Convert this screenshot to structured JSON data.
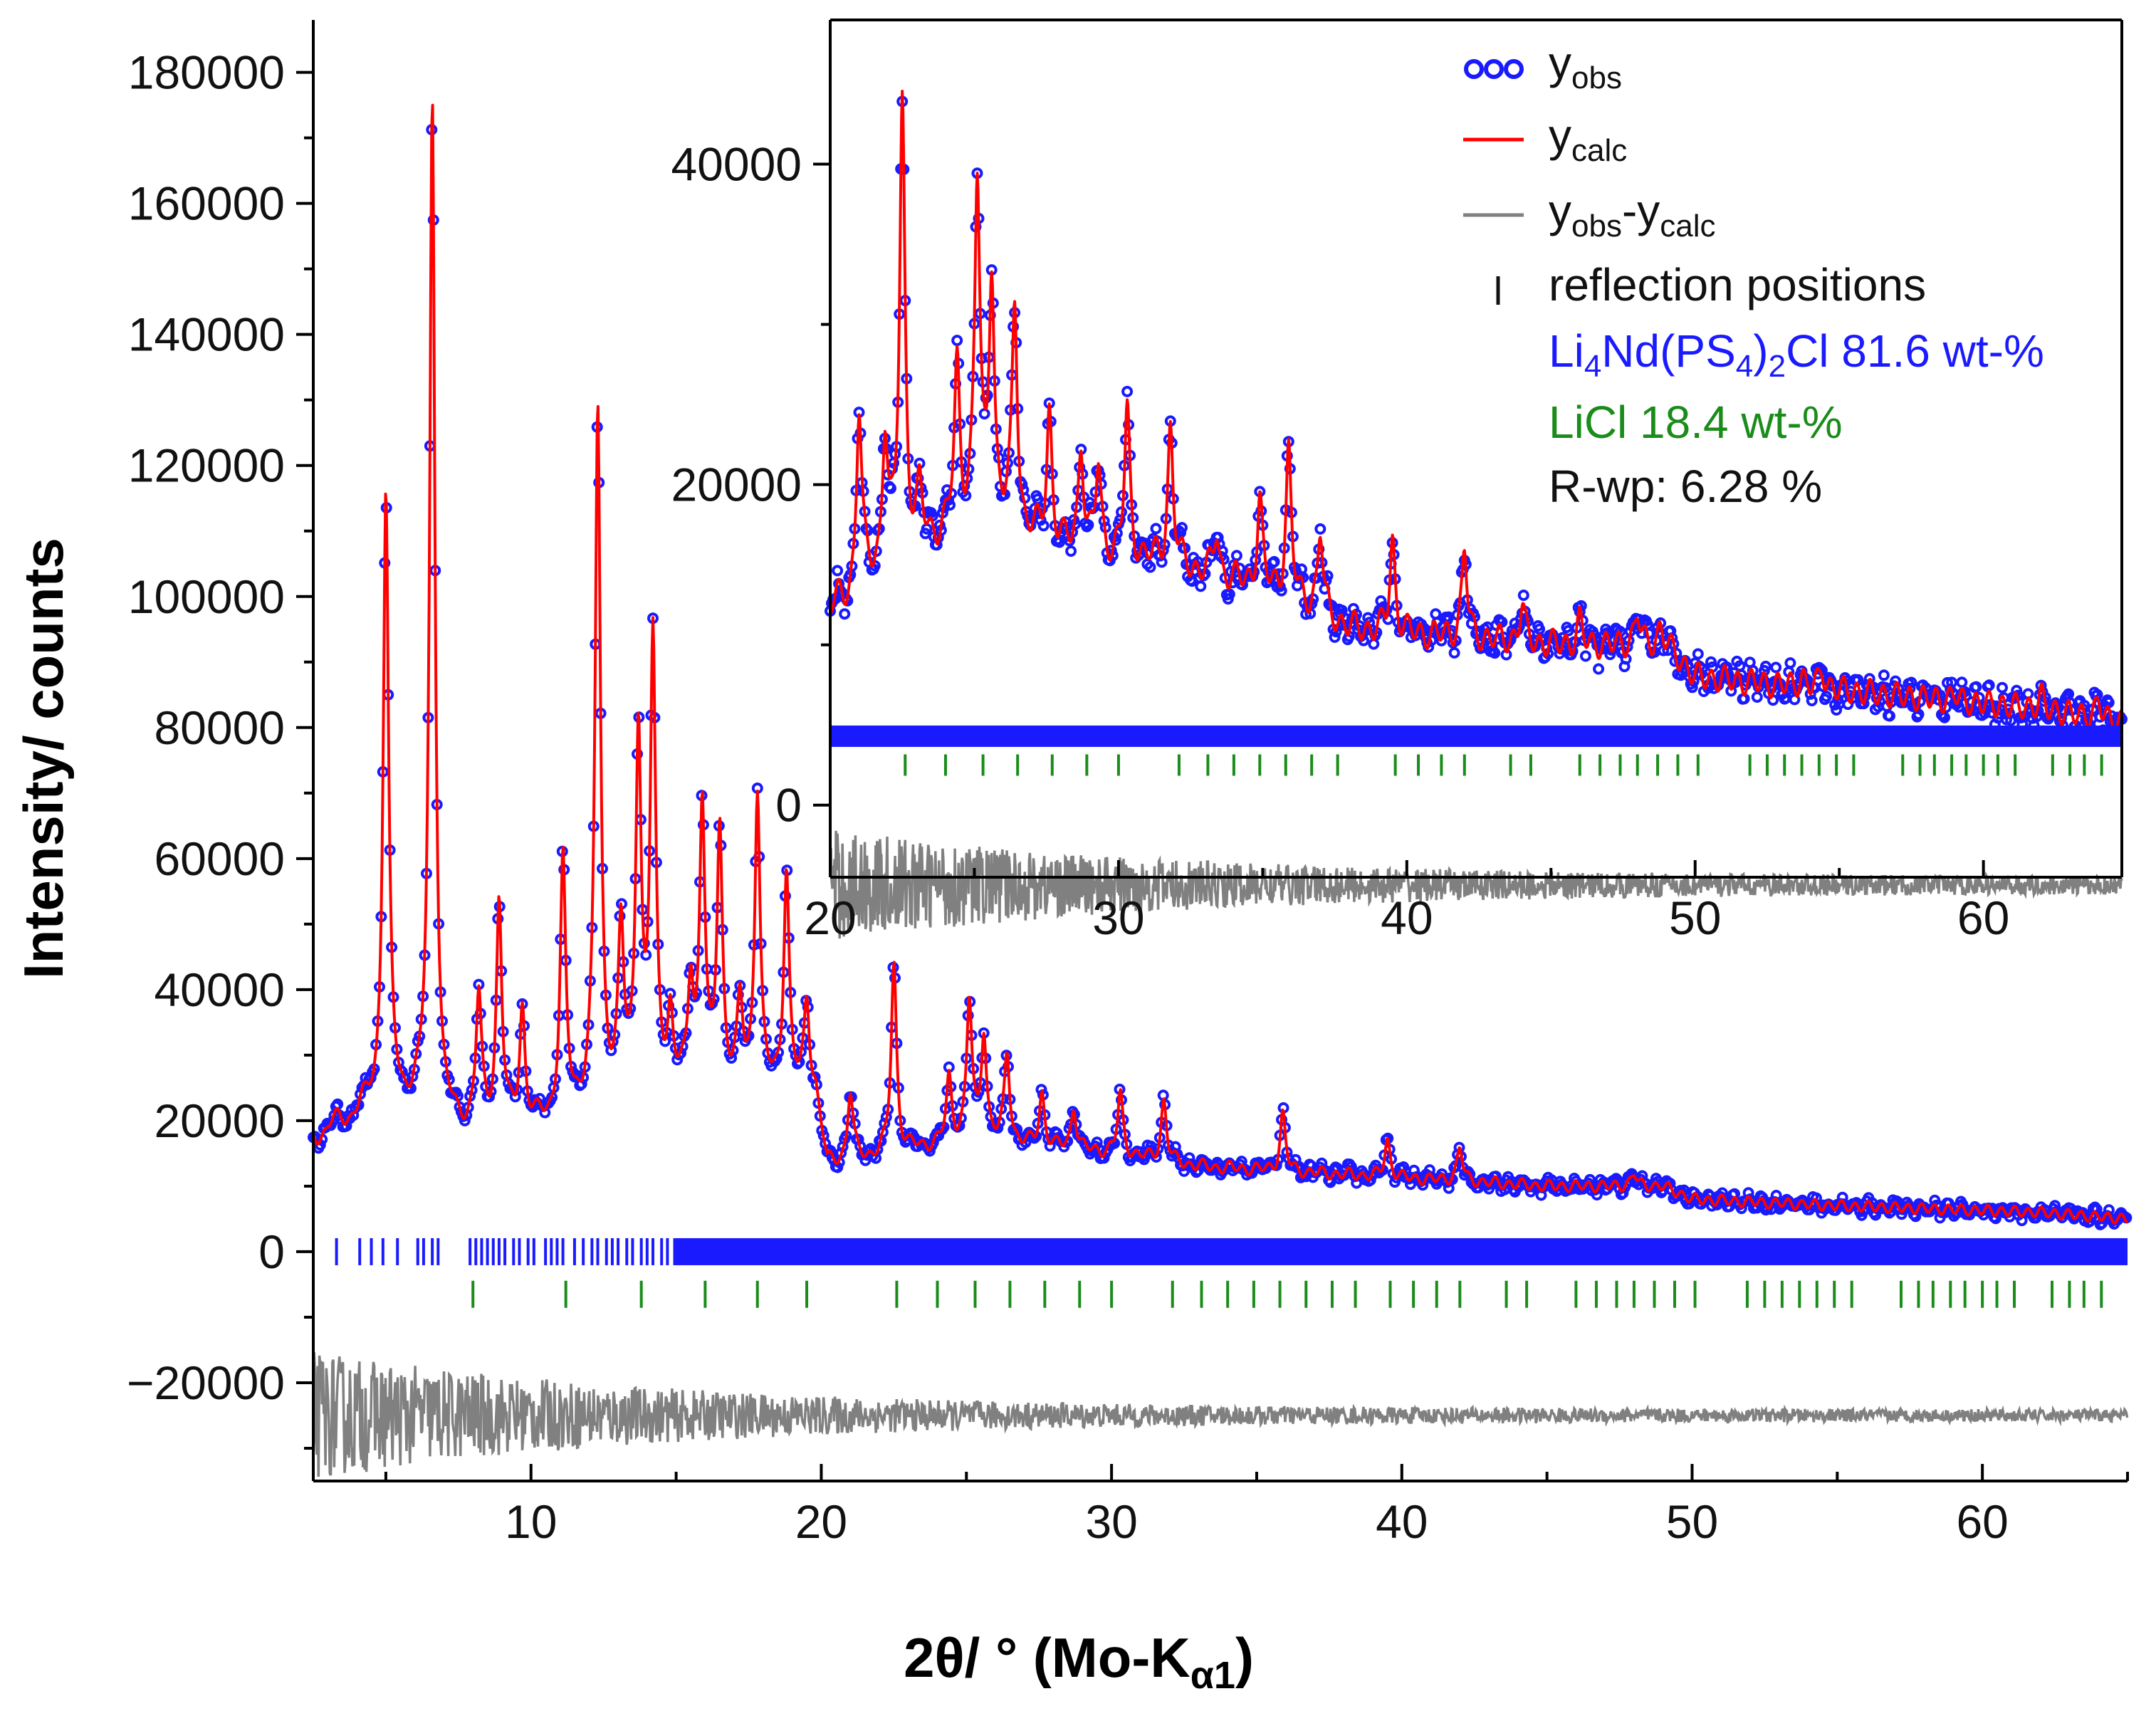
{
  "chart_data": [
    {
      "panel": "main",
      "type": "line",
      "xlabel": "2θ/ ° (Mo-K",
      "xlabel_sub": "α1",
      "xlabel_close": ")",
      "ylabel": "Intensity/ counts",
      "xlim": [
        2.5,
        65
      ],
      "ylim": [
        -35000,
        188000
      ],
      "x_ticks": [
        10,
        20,
        30,
        40,
        50,
        60
      ],
      "x_tick_labels": [
        "10",
        "20",
        "30",
        "40",
        "50",
        "60"
      ],
      "y_ticks": [
        -20000,
        0,
        20000,
        40000,
        60000,
        80000,
        100000,
        120000,
        140000,
        160000,
        180000
      ],
      "y_tick_labels": [
        "−20000",
        "0",
        "20000",
        "40000",
        "60000",
        "80000",
        "100000",
        "120000",
        "140000",
        "160000",
        "180000"
      ],
      "series": [
        {
          "name": "y",
          "sub": "obs",
          "style": "circles",
          "color": "#1a1aff"
        },
        {
          "name": "y",
          "sub": "calc",
          "style": "line",
          "color": "#ff0000"
        },
        {
          "name": "y",
          "sub": "obs",
          "mid": "-y",
          "sub2": "calc",
          "style": "line",
          "color": "#808080"
        }
      ],
      "profile_peaks": [
        {
          "x": 5.0,
          "y": 116000
        },
        {
          "x": 6.6,
          "y": 176000
        },
        {
          "x": 8.2,
          "y": 38000
        },
        {
          "x": 8.9,
          "y": 53000
        },
        {
          "x": 9.7,
          "y": 37000
        },
        {
          "x": 11.1,
          "y": 59000
        },
        {
          "x": 12.3,
          "y": 128000
        },
        {
          "x": 13.1,
          "y": 48000
        },
        {
          "x": 13.7,
          "y": 79000
        },
        {
          "x": 14.2,
          "y": 92000
        },
        {
          "x": 14.8,
          "y": 35000
        },
        {
          "x": 15.5,
          "y": 40000
        },
        {
          "x": 15.9,
          "y": 68000
        },
        {
          "x": 16.5,
          "y": 64000
        },
        {
          "x": 17.2,
          "y": 37000
        },
        {
          "x": 17.8,
          "y": 70000
        },
        {
          "x": 18.8,
          "y": 58000
        },
        {
          "x": 19.5,
          "y": 38000
        },
        {
          "x": 21.0,
          "y": 24000
        },
        {
          "x": 22.5,
          "y": 44000
        },
        {
          "x": 24.4,
          "y": 26000
        },
        {
          "x": 25.1,
          "y": 38000
        },
        {
          "x": 25.6,
          "y": 33000
        },
        {
          "x": 26.4,
          "y": 30000
        },
        {
          "x": 27.6,
          "y": 24000
        },
        {
          "x": 28.7,
          "y": 22000
        },
        {
          "x": 30.3,
          "y": 24000
        },
        {
          "x": 31.8,
          "y": 23000
        },
        {
          "x": 35.9,
          "y": 21000
        },
        {
          "x": 39.5,
          "y": 17000
        },
        {
          "x": 42.0,
          "y": 16000
        },
        {
          "x": 48.0,
          "y": 12000
        }
      ],
      "baseline": [
        {
          "x": 2.5,
          "y": 17500
        },
        {
          "x": 4.5,
          "y": 22000
        },
        {
          "x": 6.0,
          "y": 22000
        },
        {
          "x": 7.0,
          "y": 19000
        },
        {
          "x": 10.0,
          "y": 19000
        },
        {
          "x": 12.0,
          "y": 22000
        },
        {
          "x": 14.0,
          "y": 24000
        },
        {
          "x": 16.5,
          "y": 25000
        },
        {
          "x": 19.8,
          "y": 24000
        },
        {
          "x": 20.2,
          "y": 13000
        },
        {
          "x": 25.0,
          "y": 17000
        },
        {
          "x": 30.0,
          "y": 15000
        },
        {
          "x": 33.0,
          "y": 13000
        },
        {
          "x": 37.0,
          "y": 12000
        },
        {
          "x": 45.0,
          "y": 10000
        },
        {
          "x": 49.0,
          "y": 10000
        },
        {
          "x": 50.0,
          "y": 8000
        },
        {
          "x": 55.0,
          "y": 7000
        },
        {
          "x": 62.0,
          "y": 6000
        },
        {
          "x": 65.0,
          "y": 5000
        }
      ],
      "difference_offset": -25000,
      "reflections_phase1": {
        "y": 0,
        "color": "#1a1aff",
        "sparse_x": [
          3.3,
          4.1,
          4.5,
          4.9,
          5.4,
          6.1,
          6.3,
          6.6,
          6.8,
          7.9,
          8.1,
          8.3,
          8.5,
          8.7,
          8.9,
          9.1,
          9.4,
          9.6,
          9.9,
          10.1,
          10.5,
          10.7,
          10.9,
          11.1,
          11.5,
          11.8,
          12.1,
          12.3,
          12.6,
          12.8,
          13.0,
          13.3,
          13.5,
          13.8,
          14.0,
          14.2,
          14.5,
          14.7
        ],
        "dense_from": 14.9
      },
      "reflections_phase2": {
        "y": -6500,
        "color": "#1a8c1a",
        "x": [
          8.0,
          11.2,
          13.8,
          16.0,
          17.8,
          19.5,
          22.6,
          24.0,
          25.3,
          26.5,
          27.7,
          28.9,
          30.0,
          32.1,
          33.1,
          34.0,
          34.9,
          35.8,
          36.7,
          37.6,
          38.4,
          39.6,
          40.4,
          41.2,
          42.0,
          43.6,
          44.3,
          46.0,
          46.7,
          47.4,
          48.0,
          48.7,
          49.4,
          50.1,
          51.9,
          52.5,
          53.1,
          53.7,
          54.3,
          54.9,
          55.5,
          57.2,
          57.8,
          58.3,
          58.9,
          59.4,
          60.0,
          60.5,
          61.1,
          62.4,
          63.0,
          63.5,
          64.1
        ]
      }
    },
    {
      "panel": "inset",
      "type": "line",
      "xlim": [
        20,
        64.8
      ],
      "ylim": [
        -4500,
        49000
      ],
      "x_ticks": [
        20,
        30,
        40,
        50,
        60
      ],
      "x_tick_labels": [
        "20",
        "30",
        "40",
        "50",
        "60"
      ],
      "y_ticks": [
        0,
        20000,
        40000
      ],
      "y_tick_labels": [
        "0",
        "20000",
        "40000"
      ],
      "profile_peaks": [
        {
          "x": 21.0,
          "y": 24500
        },
        {
          "x": 21.9,
          "y": 23000
        },
        {
          "x": 22.5,
          "y": 44000
        },
        {
          "x": 23.1,
          "y": 19000
        },
        {
          "x": 24.4,
          "y": 27000
        },
        {
          "x": 25.1,
          "y": 38500
        },
        {
          "x": 25.6,
          "y": 33000
        },
        {
          "x": 26.4,
          "y": 31000
        },
        {
          "x": 27.6,
          "y": 24500
        },
        {
          "x": 28.7,
          "y": 22500
        },
        {
          "x": 29.3,
          "y": 21000
        },
        {
          "x": 30.3,
          "y": 24500
        },
        {
          "x": 31.8,
          "y": 23500
        },
        {
          "x": 33.4,
          "y": 17000
        },
        {
          "x": 34.9,
          "y": 19000
        },
        {
          "x": 35.9,
          "y": 22000
        },
        {
          "x": 37.0,
          "y": 17000
        },
        {
          "x": 39.5,
          "y": 16500
        },
        {
          "x": 42.0,
          "y": 16000
        },
        {
          "x": 44.0,
          "y": 12500
        },
        {
          "x": 46.0,
          "y": 11500
        },
        {
          "x": 48.0,
          "y": 12000
        },
        {
          "x": 48.8,
          "y": 11000
        },
        {
          "x": 53.7,
          "y": 8000
        },
        {
          "x": 54.4,
          "y": 8500
        },
        {
          "x": 59.0,
          "y": 7000
        },
        {
          "x": 62.0,
          "y": 6800
        },
        {
          "x": 64.0,
          "y": 6500
        }
      ],
      "baseline": [
        {
          "x": 20.0,
          "y": 12000
        },
        {
          "x": 22.0,
          "y": 15000
        },
        {
          "x": 25.0,
          "y": 18000
        },
        {
          "x": 28.0,
          "y": 16000
        },
        {
          "x": 32.0,
          "y": 15000
        },
        {
          "x": 36.0,
          "y": 13000
        },
        {
          "x": 38.0,
          "y": 11000
        },
        {
          "x": 45.0,
          "y": 10000
        },
        {
          "x": 49.0,
          "y": 10000
        },
        {
          "x": 50.0,
          "y": 8000
        },
        {
          "x": 56.0,
          "y": 7000
        },
        {
          "x": 62.0,
          "y": 6000
        },
        {
          "x": 64.8,
          "y": 5200
        }
      ],
      "difference_offset": -5000,
      "reflections_phase1": {
        "y": 4300,
        "color": "#1a1aff",
        "dense_from": 20.0
      },
      "reflections_phase2": {
        "y": 2500,
        "color": "#1a8c1a",
        "x": [
          22.6,
          24.0,
          25.3,
          26.5,
          27.7,
          28.9,
          30.0,
          32.1,
          33.1,
          34.0,
          34.9,
          35.8,
          36.7,
          37.6,
          39.6,
          40.4,
          41.2,
          42.0,
          43.6,
          44.3,
          46.0,
          46.7,
          47.4,
          48.0,
          48.7,
          49.4,
          50.1,
          51.9,
          52.5,
          53.1,
          53.7,
          54.3,
          54.9,
          55.5,
          57.2,
          57.8,
          58.3,
          58.9,
          59.4,
          60.0,
          60.5,
          61.1,
          62.4,
          63.0,
          63.5,
          64.1
        ]
      }
    }
  ],
  "legend": {
    "obs_main": "y",
    "obs_sub": "obs",
    "calc_main": "y",
    "calc_sub": "calc",
    "diff_main_a": "y",
    "diff_sub_a": "obs",
    "diff_main_b": "-y",
    "diff_sub_b": "calc",
    "reflections": "reflection positions",
    "phase1_a": "Li",
    "phase1_sub1": "4",
    "phase1_b": "Nd(PS",
    "phase1_sub2": "4",
    "phase1_c": ")",
    "phase1_sub3": "2",
    "phase1_d": "Cl 81.6 wt-%",
    "phase2": "LiCl 18.4 wt-%",
    "rwp": "R-wp: 6.28 %"
  },
  "colors": {
    "obs": "#1a1aff",
    "calc": "#ff0000",
    "diff": "#808080",
    "phase2": "#1a8c1a",
    "axis": "#000000"
  }
}
